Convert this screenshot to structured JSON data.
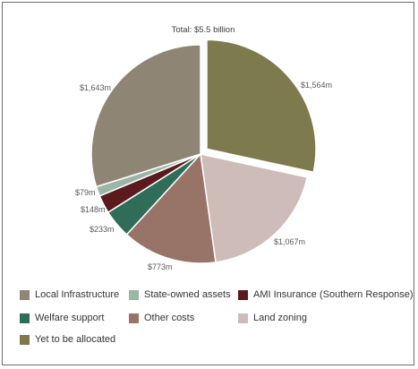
{
  "chart_data": {
    "type": "pie",
    "title": "Total: $5.5 billion",
    "slices": [
      {
        "name": "Yet to be allocated",
        "value": 1564,
        "label": "$1,564m",
        "color": "#7d7a4e",
        "exploded": true
      },
      {
        "name": "Land zoning",
        "value": 1067,
        "label": "$1,067m",
        "color": "#cdbcb8",
        "exploded": false
      },
      {
        "name": "Other costs",
        "value": 773,
        "label": "$773m",
        "color": "#977368",
        "exploded": false
      },
      {
        "name": "Welfare support",
        "value": 233,
        "label": "$233m",
        "color": "#2f6d58",
        "exploded": false
      },
      {
        "name": "AMI Insurance (Southern Response)",
        "value": 148,
        "label": "$148m",
        "color": "#5a1a1e",
        "exploded": false
      },
      {
        "name": "State-owned assets",
        "value": 79,
        "label": "$79m",
        "color": "#9cb6a6",
        "exploded": false
      },
      {
        "name": "Local Infrastructure",
        "value": 1643,
        "label": "$1,643m",
        "color": "#8e8575",
        "exploded": false
      }
    ],
    "legend": {
      "placement": "bottom",
      "items": [
        {
          "label": "Local Infrastructure",
          "color": "#8e8575"
        },
        {
          "label": "State-owned assets",
          "color": "#9cb6a6"
        },
        {
          "label": "AMI Insurance (Southern Response)",
          "color": "#5a1a1e"
        },
        {
          "label": "Welfare support",
          "color": "#2f6d58"
        },
        {
          "label": "Other costs",
          "color": "#977368"
        },
        {
          "label": "Land zoning",
          "color": "#cdbcb8"
        },
        {
          "label": "Yet to be allocated",
          "color": "#7d7a4e"
        }
      ]
    }
  }
}
